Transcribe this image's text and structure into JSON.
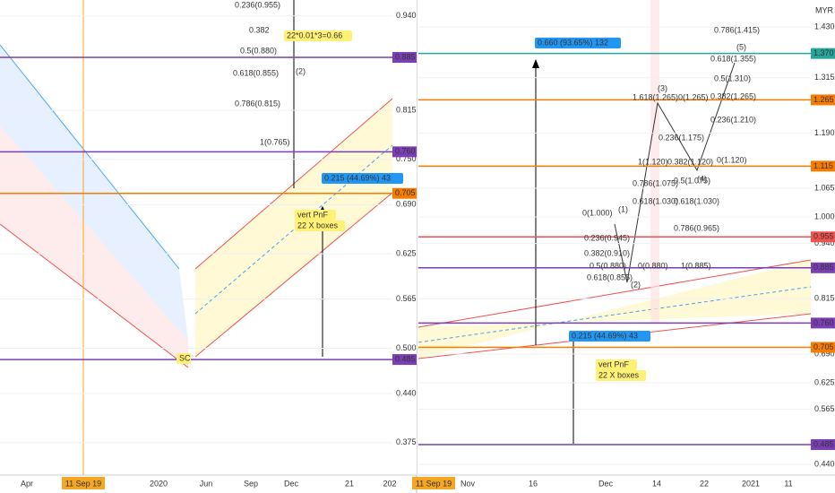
{
  "chart_data": [
    {
      "type": "price-panel",
      "ylim": [
        0.332,
        0.961
      ],
      "yticks": [
        {
          "value": 0.94,
          "label": "0.940"
        },
        {
          "value": 0.815,
          "label": "0.815"
        },
        {
          "value": 0.75,
          "label": "0.750"
        },
        {
          "value": 0.69,
          "label": "0.690"
        },
        {
          "value": 0.625,
          "label": "0.625"
        },
        {
          "value": 0.565,
          "label": "0.565"
        },
        {
          "value": 0.5,
          "label": "0.500"
        },
        {
          "value": 0.44,
          "label": "0.440"
        },
        {
          "value": 0.375,
          "label": "0.375"
        }
      ],
      "levels": [
        {
          "value": 0.885,
          "label": "0.885",
          "color": "#7b3fb5"
        },
        {
          "value": 0.76,
          "label": "0.760",
          "color": "#7b3fb5"
        },
        {
          "value": 0.705,
          "label": "0.705",
          "color": "#f57c00"
        },
        {
          "value": 0.485,
          "label": "0.485",
          "color": "#7b3fb5"
        }
      ],
      "xlabels": [
        "Apr",
        "11 Sep 19",
        "2020",
        "Jun",
        "Sep",
        "Dec",
        "21",
        "202"
      ],
      "annotations": [
        "0.236(0.955)",
        "0.382",
        "0.5(0.880)",
        "0.618(0.855)",
        "0.786(0.815)",
        "1(0.765)",
        "(2)",
        "22*0.01*3=0.66",
        "0.215 (44.69%) 43",
        "vert PnF",
        "22 X boxes",
        "SC"
      ]
    },
    {
      "type": "price-panel",
      "currency": "MYR",
      "ylim": [
        0.416,
        1.491
      ],
      "yticks": [
        {
          "value": 1.43,
          "label": "1.430"
        },
        {
          "value": 1.315,
          "label": "1.315"
        },
        {
          "value": 1.19,
          "label": "1.190"
        },
        {
          "value": 1.065,
          "label": "1.065"
        },
        {
          "value": 1.0,
          "label": "1.000"
        },
        {
          "value": 0.94,
          "label": "0.940"
        },
        {
          "value": 0.815,
          "label": "0.815"
        },
        {
          "value": 0.69,
          "label": "0.690"
        },
        {
          "value": 0.625,
          "label": "0.625"
        },
        {
          "value": 0.565,
          "label": "0.565"
        },
        {
          "value": 0.44,
          "label": "0.440"
        }
      ],
      "levels": [
        {
          "value": 1.37,
          "label": "1.370",
          "color": "#26a69a"
        },
        {
          "value": 1.265,
          "label": "1.265",
          "color": "#f57c00"
        },
        {
          "value": 1.115,
          "label": "1.115",
          "color": "#f57c00"
        },
        {
          "value": 0.955,
          "label": "0.955",
          "color": "#ef5350"
        },
        {
          "value": 0.885,
          "label": "0.885",
          "color": "#7b3fb5"
        },
        {
          "value": 0.76,
          "label": "0.760",
          "color": "#7b3fb5"
        },
        {
          "value": 0.705,
          "label": "0.705",
          "color": "#f57c00"
        },
        {
          "value": 0.485,
          "label": "0.485",
          "color": "#7b3fb5"
        }
      ],
      "xlabels": [
        "11 Sep 19",
        "Nov",
        "16",
        "Dec",
        "14",
        "22",
        "2021",
        "11"
      ],
      "annotations": [
        "0.660 (93.65%) 132",
        "0.786(1.415)",
        "(5)",
        "0.618(1.355)",
        "0.5(1.310)",
        "(3)",
        "1.618(1.265)",
        "0(1.265)",
        "0.382(1.265)",
        "0.236(1.210)",
        "0.236(1.175)",
        "1(1.120)",
        "0.382(1.120)",
        "0(1.120)",
        "(4)",
        "0.786(1.075)",
        "0.5(1.075)",
        "0.618(1.030)",
        "0.618(1.030)",
        "0(1.000)",
        "(1)",
        "0.236(0.945)",
        "0.382(0.910)",
        "0.5(0.880)",
        "0(0.880)",
        "1(0.885)",
        "(2)",
        "0.618(0.855)",
        "0.786(0.965)",
        "0.215 (44.69%) 43",
        "vert PnF",
        "22 X boxes"
      ]
    }
  ]
}
